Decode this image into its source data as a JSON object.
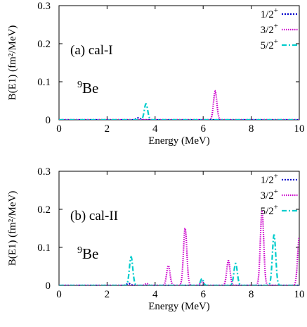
{
  "chart_data": [
    {
      "type": "line",
      "panel_label": "(a) cal-I",
      "nucleus_mass": "9",
      "nucleus_symbol": "Be",
      "xlabel": "Energy (MeV)",
      "ylabel": "B(E1) (fm²/MeV)",
      "xlim": [
        0,
        10
      ],
      "ylim": [
        0,
        0.3
      ],
      "x_ticks": [
        "0",
        "2",
        "4",
        "6",
        "8",
        "10"
      ],
      "y_ticks": [
        "0",
        "0.1",
        "0.2",
        "0.3"
      ],
      "grid": false,
      "legend_position": "top-right",
      "series": [
        {
          "name": "1/2+",
          "name_base": "1/2",
          "name_sup": "+",
          "color": "#0000cc",
          "dash": "2,2",
          "peaks": [
            {
              "energy": 3.3,
              "value": 0.005,
              "width": 0.08
            }
          ]
        },
        {
          "name": "3/2+",
          "name_base": "3/2",
          "name_sup": "+",
          "color": "#cc00cc",
          "dash": "1.5,1.5",
          "peaks": [
            {
              "energy": 6.5,
              "value": 0.075,
              "width": 0.07
            }
          ]
        },
        {
          "name": "5/2+",
          "name_base": "5/2",
          "name_sup": "+",
          "color": "#00cccc",
          "dash": "7,3,2,3",
          "peaks": [
            {
              "energy": 3.62,
              "value": 0.042,
              "width": 0.07
            }
          ]
        }
      ]
    },
    {
      "type": "line",
      "panel_label": "(b) cal-II",
      "nucleus_mass": "9",
      "nucleus_symbol": "Be",
      "xlabel": "Energy (MeV)",
      "ylabel": "B(E1) (fm²/MeV)",
      "xlim": [
        0,
        10
      ],
      "ylim": [
        0,
        0.3
      ],
      "x_ticks": [
        "0",
        "2",
        "4",
        "6",
        "8",
        "10"
      ],
      "y_ticks": [
        "0",
        "0.1",
        "0.2",
        "0.3"
      ],
      "grid": false,
      "legend_position": "top-right",
      "series": [
        {
          "name": "1/2+",
          "name_base": "1/2",
          "name_sup": "+",
          "color": "#0000cc",
          "dash": "2,2",
          "peaks": [
            {
              "energy": 2.9,
              "value": 0.005,
              "width": 0.08
            }
          ]
        },
        {
          "name": "3/2+",
          "name_base": "3/2",
          "name_sup": "+",
          "color": "#cc00cc",
          "dash": "1.5,1.5",
          "peaks": [
            {
              "energy": 3.65,
              "value": 0.005,
              "width": 0.06
            },
            {
              "energy": 4.55,
              "value": 0.052,
              "width": 0.07
            },
            {
              "energy": 5.25,
              "value": 0.15,
              "width": 0.07
            },
            {
              "energy": 5.95,
              "value": 0.012,
              "width": 0.06
            },
            {
              "energy": 7.05,
              "value": 0.065,
              "width": 0.07
            },
            {
              "energy": 8.45,
              "value": 0.195,
              "width": 0.07
            },
            {
              "energy": 10.0,
              "value": 0.125,
              "width": 0.07
            }
          ]
        },
        {
          "name": "5/2+",
          "name_base": "5/2",
          "name_sup": "+",
          "color": "#00cccc",
          "dash": "7,3,2,3",
          "peaks": [
            {
              "energy": 3.0,
              "value": 0.075,
              "width": 0.07
            },
            {
              "energy": 5.95,
              "value": 0.018,
              "width": 0.06
            },
            {
              "energy": 7.35,
              "value": 0.058,
              "width": 0.07
            },
            {
              "energy": 8.95,
              "value": 0.133,
              "width": 0.07
            }
          ]
        }
      ]
    }
  ]
}
